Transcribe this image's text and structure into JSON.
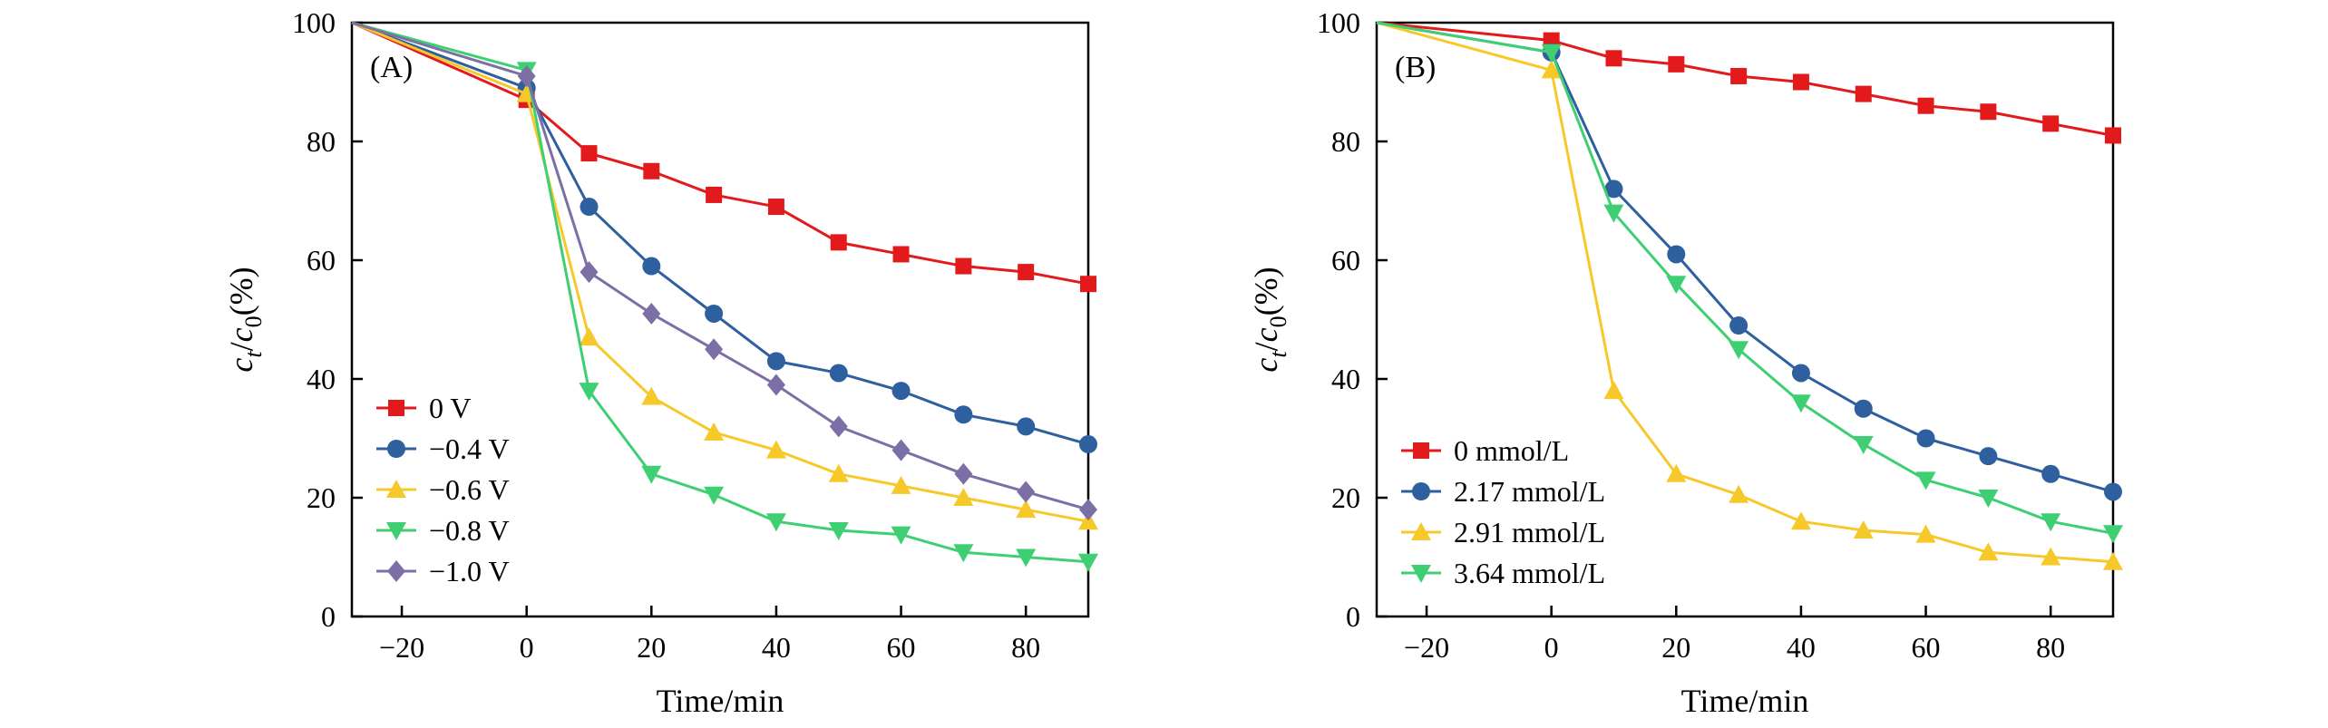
{
  "chart_data": [
    {
      "type": "line",
      "panel_label": "(A)",
      "xlabel": "Time/min",
      "ylabel_parts": [
        "c",
        "t",
        "/",
        "c",
        "0",
        "(%)"
      ],
      "xlim": [
        -28,
        90
      ],
      "ylim": [
        0,
        100
      ],
      "xticks": [
        -20,
        0,
        20,
        40,
        60,
        80
      ],
      "yticks": [
        0,
        20,
        40,
        60,
        80,
        100
      ],
      "legend_position": "lower-left",
      "series": [
        {
          "name": " 0 V",
          "color": "#e31a1c",
          "marker": "square",
          "x": [
            -28,
            0,
            10,
            20,
            30,
            40,
            50,
            60,
            70,
            80,
            90
          ],
          "y": [
            100,
            87,
            78,
            75,
            71,
            69,
            63,
            61,
            59,
            58,
            56
          ]
        },
        {
          "name": "−0.4 V",
          "color": "#2e5f9e",
          "marker": "circle",
          "x": [
            -28,
            0,
            10,
            20,
            30,
            40,
            50,
            60,
            70,
            80,
            90
          ],
          "y": [
            100,
            89,
            69,
            59,
            51,
            43,
            41,
            38,
            34,
            32,
            29
          ]
        },
        {
          "name": "−0.6 V",
          "color": "#f7c82a",
          "marker": "triangle-up",
          "x": [
            -28,
            0,
            10,
            20,
            30,
            40,
            50,
            60,
            70,
            80,
            90
          ],
          "y": [
            100,
            88,
            47,
            37,
            31,
            28,
            24,
            22,
            20,
            18,
            16
          ]
        },
        {
          "name": "−0.8 V",
          "color": "#3fcf73",
          "marker": "triangle-down",
          "x": [
            -28,
            0,
            10,
            20,
            30,
            40,
            50,
            60,
            70,
            80,
            90
          ],
          "y": [
            100,
            92,
            38,
            24,
            20.5,
            16,
            14.5,
            13.8,
            10.8,
            10,
            9.2
          ]
        },
        {
          "name": "−1.0 V",
          "color": "#7b6fa6",
          "marker": "diamond",
          "x": [
            -28,
            0,
            10,
            20,
            30,
            40,
            50,
            60,
            70,
            80,
            90
          ],
          "y": [
            100,
            91,
            58,
            51,
            45,
            39,
            32,
            28,
            24,
            21,
            18
          ]
        }
      ]
    },
    {
      "type": "line",
      "panel_label": "(B)",
      "xlabel": "Time/min",
      "ylabel_parts": [
        "c",
        "t",
        "/",
        "c",
        "0",
        "(%)"
      ],
      "xlim": [
        -28,
        90
      ],
      "ylim": [
        0,
        100
      ],
      "xticks": [
        -20,
        0,
        20,
        40,
        60,
        80
      ],
      "yticks": [
        0,
        20,
        40,
        60,
        80,
        100
      ],
      "legend_position": "lower-left",
      "series": [
        {
          "name": "0 mmol/L",
          "color": "#e31a1c",
          "marker": "square",
          "x": [
            -28,
            0,
            10,
            20,
            30,
            40,
            50,
            60,
            70,
            80,
            90
          ],
          "y": [
            100,
            97,
            94,
            93,
            91,
            90,
            88,
            86,
            85,
            83,
            81
          ]
        },
        {
          "name": "2.17 mmol/L",
          "color": "#2e5f9e",
          "marker": "circle",
          "x": [
            -28,
            0,
            10,
            20,
            30,
            40,
            50,
            60,
            70,
            80,
            90
          ],
          "y": [
            100,
            95,
            72,
            61,
            49,
            41,
            35,
            30,
            27,
            24,
            21
          ]
        },
        {
          "name": "2.91 mmol/L",
          "color": "#f7c82a",
          "marker": "triangle-up",
          "x": [
            -28,
            0,
            10,
            20,
            30,
            40,
            50,
            60,
            70,
            80,
            90
          ],
          "y": [
            100,
            92,
            38,
            24,
            20.5,
            16,
            14.5,
            13.8,
            10.8,
            10,
            9.2
          ]
        },
        {
          "name": "3.64 mmol/L",
          "color": "#3fcf73",
          "marker": "triangle-down",
          "x": [
            -28,
            0,
            10,
            20,
            30,
            40,
            50,
            60,
            70,
            80,
            90
          ],
          "y": [
            100,
            95,
            68,
            56,
            45,
            36,
            29,
            23,
            20,
            16,
            14
          ]
        }
      ]
    }
  ]
}
